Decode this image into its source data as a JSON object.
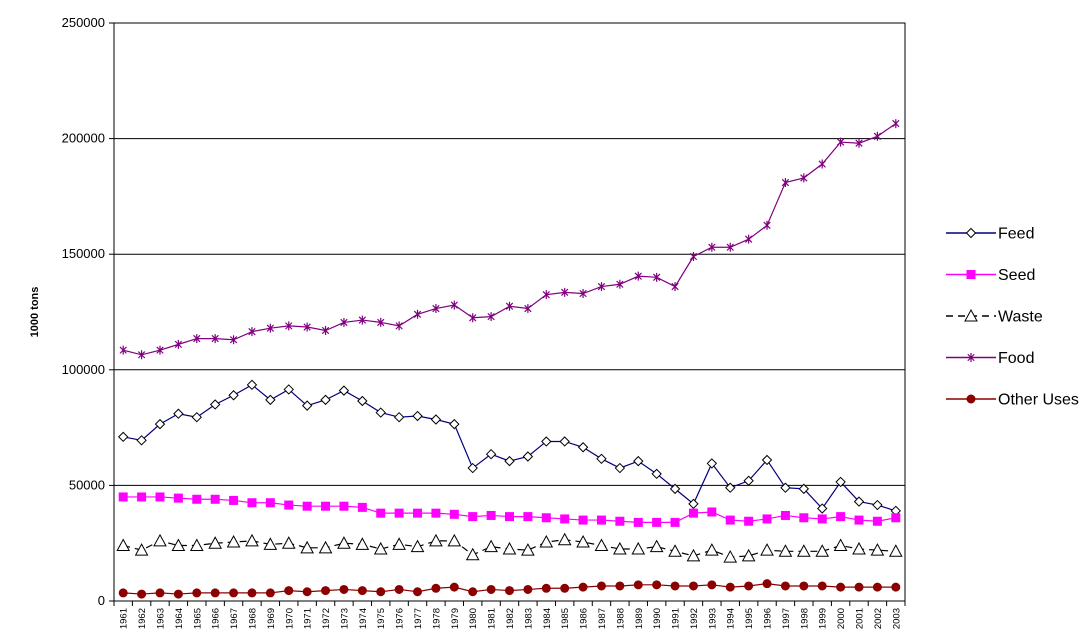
{
  "chart_data": {
    "type": "line",
    "title": "",
    "xlabel": "",
    "ylabel": "1000 tons",
    "ylim": [
      0,
      250000
    ],
    "yticks": [
      0,
      50000,
      100000,
      150000,
      200000,
      250000
    ],
    "grid": true,
    "legend": "right",
    "x": [
      "1961",
      "1962",
      "1963",
      "1964",
      "1965",
      "1966",
      "1967",
      "1968",
      "1969",
      "1970",
      "1971",
      "1972",
      "1973",
      "1974",
      "1975",
      "1976",
      "1977",
      "1978",
      "1979",
      "1980",
      "1981",
      "1982",
      "1983",
      "1984",
      "1985",
      "1986",
      "1987",
      "1988",
      "1989",
      "1990",
      "1991",
      "1992",
      "1993",
      "1994",
      "1995",
      "1996",
      "1997",
      "1998",
      "1999",
      "2000",
      "2001",
      "2002",
      "2003"
    ],
    "series": [
      {
        "name": "Feed",
        "color": "#000080",
        "marker": "diamond",
        "dash": "solid",
        "values": [
          71000,
          69500,
          76500,
          81000,
          79500,
          85000,
          89000,
          93500,
          87000,
          91500,
          84500,
          87000,
          91000,
          86500,
          81500,
          79500,
          80000,
          78500,
          76500,
          57500,
          63500,
          60500,
          62500,
          69000,
          69000,
          66500,
          61500,
          57500,
          60500,
          55000,
          48500,
          42000,
          59500,
          49000,
          52000,
          61000,
          49000,
          48500,
          40000,
          51500,
          43000,
          41500,
          39000
        ]
      },
      {
        "name": "Seed",
        "color": "#ff00ff",
        "marker": "square",
        "dash": "solid",
        "values": [
          45000,
          45000,
          45000,
          44500,
          44000,
          44000,
          43500,
          42500,
          42500,
          41500,
          41000,
          41000,
          41000,
          40500,
          38000,
          38000,
          38000,
          38000,
          37500,
          36500,
          37000,
          36500,
          36500,
          36000,
          35500,
          35000,
          35000,
          34500,
          34000,
          34000,
          34000,
          38000,
          38500,
          35000,
          34500,
          35500,
          37000,
          36000,
          35500,
          36500,
          35000,
          34500,
          36000
        ]
      },
      {
        "name": "Waste",
        "color": "#000000",
        "marker": "triangle",
        "dash": "dashed",
        "values": [
          24000,
          22000,
          26000,
          24000,
          24000,
          25000,
          25500,
          26000,
          24500,
          25000,
          23000,
          23000,
          25000,
          24500,
          22500,
          24500,
          23500,
          26000,
          26000,
          20000,
          23500,
          22500,
          22000,
          25500,
          26500,
          25500,
          24000,
          22500,
          22500,
          23500,
          21500,
          19500,
          22000,
          19000,
          19500,
          22000,
          21500,
          21500,
          21500,
          24000,
          22500,
          22000,
          21500
        ]
      },
      {
        "name": "Food",
        "color": "#800080",
        "marker": "star",
        "dash": "solid",
        "values": [
          108500,
          106500,
          108500,
          111000,
          113500,
          113500,
          113000,
          116500,
          118000,
          119000,
          118500,
          117000,
          120500,
          121500,
          120500,
          119000,
          124000,
          126500,
          128000,
          122500,
          123000,
          127500,
          126500,
          132500,
          133500,
          133000,
          136000,
          137000,
          140500,
          140000,
          136000,
          149000,
          153000,
          153000,
          156500,
          162500,
          181000,
          183000,
          189000,
          198500,
          198000,
          201000,
          206500
        ]
      },
      {
        "name": "Other Uses",
        "color": "#8b0000",
        "marker": "circle",
        "dash": "solid",
        "values": [
          3500,
          3000,
          3500,
          3000,
          3500,
          3500,
          3500,
          3500,
          3500,
          4500,
          4000,
          4500,
          5000,
          4500,
          4000,
          5000,
          4000,
          5500,
          6000,
          4000,
          5000,
          4500,
          5000,
          5500,
          5500,
          6000,
          6500,
          6500,
          7000,
          7000,
          6500,
          6500,
          7000,
          6000,
          6500,
          7500,
          6500,
          6500,
          6500,
          6000,
          6000,
          6000,
          6000
        ]
      }
    ]
  }
}
